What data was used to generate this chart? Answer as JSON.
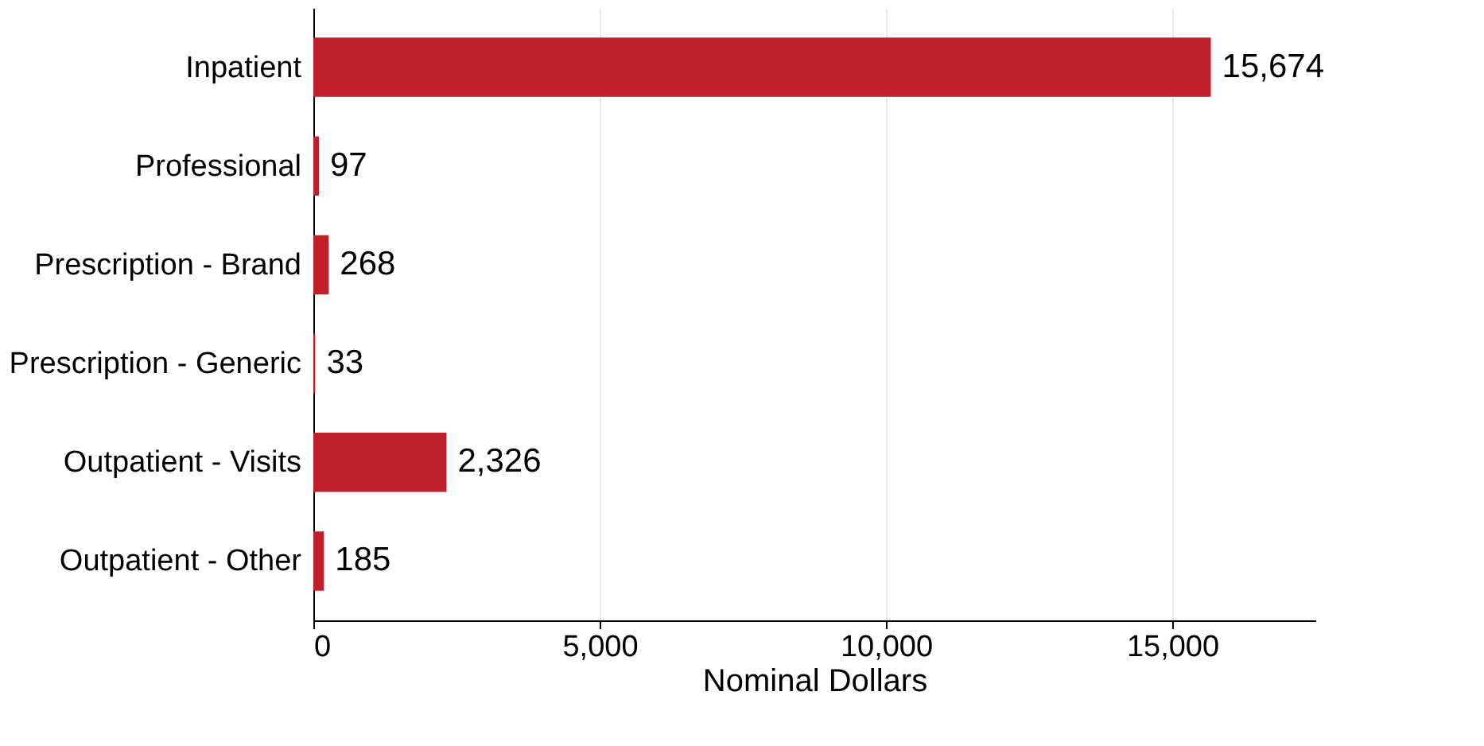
{
  "chart_data": {
    "type": "bar",
    "orientation": "horizontal",
    "categories": [
      "Inpatient",
      "Professional",
      "Prescription - Brand",
      "Prescription - Generic",
      "Outpatient - Visits",
      "Outpatient - Other"
    ],
    "values": [
      15674,
      97,
      268,
      33,
      2326,
      185
    ],
    "value_labels": [
      "15,674",
      "97",
      "268",
      "33",
      "2,326",
      "185"
    ],
    "color": "#c0202a",
    "xlabel": "Nominal Dollars",
    "xlim": [
      0,
      17500
    ],
    "xticks": [
      0,
      {
        "value": 5000,
        "label": "5,000"
      },
      {
        "value": 10000,
        "label": "10,000"
      },
      {
        "value": 15000,
        "label": "15,000"
      }
    ],
    "grid": "x"
  }
}
